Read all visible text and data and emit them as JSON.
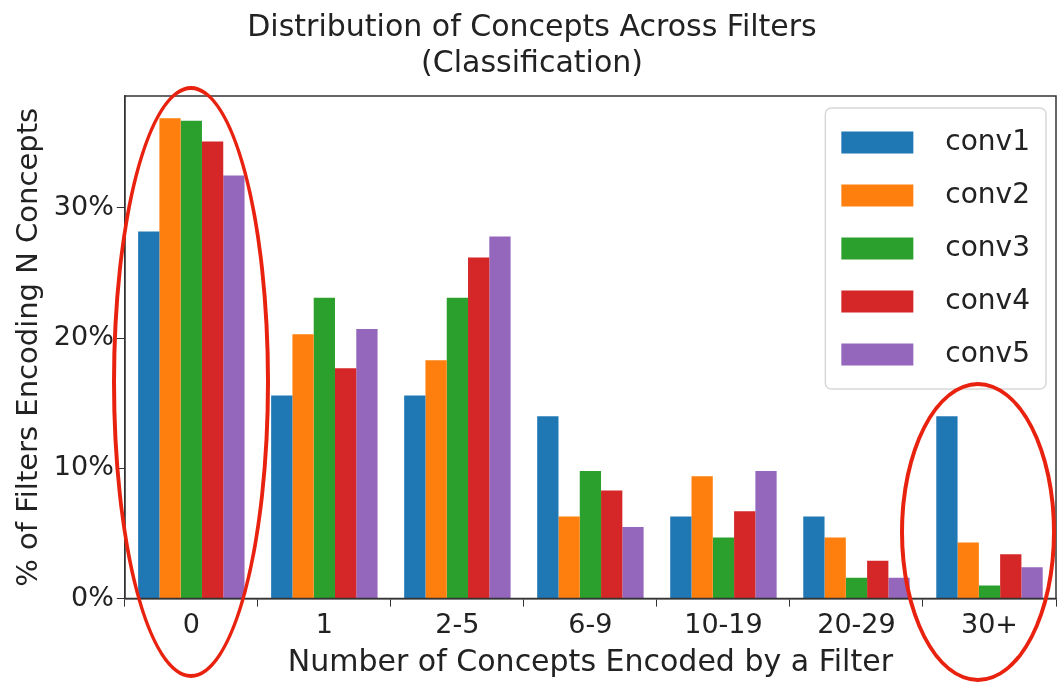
{
  "chart_data": {
    "type": "bar",
    "title": "Distribution of Concepts Across Filters",
    "subtitle": "(Classification)",
    "xlabel": "Number of Concepts Encoded by a Filter",
    "ylabel": "% of Filters Encoding N Concepts",
    "categories": [
      "0",
      "1",
      "2-5",
      "6-9",
      "10-19",
      "20-29",
      "30+"
    ],
    "series": [
      {
        "name": "conv1",
        "color": "#1f77b4",
        "values": [
          28.2,
          15.6,
          15.6,
          14.0,
          6.3,
          6.3,
          14.0
        ]
      },
      {
        "name": "conv2",
        "color": "#ff7f0e",
        "values": [
          36.9,
          20.3,
          18.3,
          6.3,
          9.4,
          4.7,
          4.3
        ]
      },
      {
        "name": "conv3",
        "color": "#2ca02c",
        "values": [
          36.7,
          23.1,
          23.1,
          9.8,
          4.7,
          1.6,
          1.0
        ]
      },
      {
        "name": "conv4",
        "color": "#d62728",
        "values": [
          35.1,
          17.7,
          26.2,
          8.3,
          6.7,
          2.9,
          3.4
        ]
      },
      {
        "name": "conv5",
        "color": "#9467bd",
        "values": [
          32.5,
          20.7,
          27.8,
          5.5,
          9.8,
          1.6,
          2.4
        ]
      }
    ],
    "ylim": [
      0,
      38.6
    ],
    "yticks": [
      {
        "value": 0,
        "label": "0%"
      },
      {
        "value": 10,
        "label": "10%"
      },
      {
        "value": 20,
        "label": "20%"
      },
      {
        "value": 30,
        "label": "30%"
      }
    ],
    "grid": false,
    "legend": "top right"
  }
}
